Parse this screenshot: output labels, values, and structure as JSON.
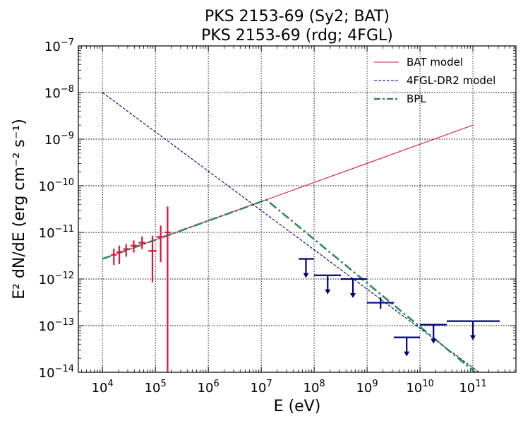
{
  "chart_data": {
    "type": "scatter",
    "title_lines": [
      "PKS 2153-69 (Sy2; BAT)",
      "PKS 2153-69 (rdg; 4FGL)"
    ],
    "xlabel": "E (eV)",
    "ylabel": "E² dN/dE (erg cm⁻² s⁻¹)",
    "x_scale": "log",
    "y_scale": "log",
    "xlim": [
      3500.0,
      650000000000.0
    ],
    "ylim": [
      1e-14,
      1e-07
    ],
    "grid": true,
    "legend_placement": "top-right",
    "x_ticks": [
      {
        "value": 10000.0,
        "base": "10",
        "exp": "4"
      },
      {
        "value": 100000.0,
        "base": "10",
        "exp": "5"
      },
      {
        "value": 1000000.0,
        "base": "10",
        "exp": "6"
      },
      {
        "value": 10000000.0,
        "base": "10",
        "exp": "7"
      },
      {
        "value": 100000000.0,
        "base": "10",
        "exp": "8"
      },
      {
        "value": 1000000000.0,
        "base": "10",
        "exp": "9"
      },
      {
        "value": 10000000000.0,
        "base": "10",
        "exp": "10"
      },
      {
        "value": 100000000000.0,
        "base": "10",
        "exp": "11"
      }
    ],
    "y_ticks": [
      {
        "value": 1e-14,
        "base": "10",
        "exp": "−14"
      },
      {
        "value": 1e-13,
        "base": "10",
        "exp": "−13"
      },
      {
        "value": 1e-12,
        "base": "10",
        "exp": "−12"
      },
      {
        "value": 1e-11,
        "base": "10",
        "exp": "−11"
      },
      {
        "value": 1e-10,
        "base": "10",
        "exp": "−10"
      },
      {
        "value": 1e-09,
        "base": "10",
        "exp": "−9"
      },
      {
        "value": 1e-08,
        "base": "10",
        "exp": "−8"
      },
      {
        "value": 1e-07,
        "base": "10",
        "exp": "−7"
      }
    ],
    "series": [
      {
        "name": "BAT model",
        "kind": "line",
        "color": "#dc143c",
        "dash": "solid",
        "points": [
          [
            10000.0,
            2.7e-12
          ],
          [
            100000000000.0,
            2e-09
          ]
        ]
      },
      {
        "name": "4FGL-DR2 model",
        "kind": "line",
        "color": "#000080",
        "dash": "dashed",
        "points": [
          [
            10000.0,
            1e-08
          ],
          [
            130000000000.0,
            1e-14
          ]
        ]
      },
      {
        "name": "BPL",
        "kind": "line",
        "color": "#2e8b57",
        "dash": "dashdot",
        "points": [
          [
            10000.0,
            2.7e-12
          ],
          [
            12500000.0,
            5e-11
          ],
          [
            110000000000.0,
            1e-14
          ]
        ]
      }
    ],
    "bat_points": [
      {
        "x": 16400.0,
        "xlo": 14500.0,
        "xhi": 18500.0,
        "y": 3.3e-12,
        "ylo": 2e-12,
        "yhi": 4.5e-12
      },
      {
        "x": 20800.0,
        "xlo": 18500.0,
        "xhi": 23500.0,
        "y": 3.8e-12,
        "ylo": 2.1e-12,
        "yhi": 5.2e-12
      },
      {
        "x": 28000.0,
        "xlo": 25000.0,
        "xhi": 31500.0,
        "y": 4.4e-12,
        "ylo": 3e-12,
        "yhi": 5.6e-12
      },
      {
        "x": 39000.0,
        "xlo": 34000.0,
        "xhi": 44500.0,
        "y": 5.2e-12,
        "ylo": 3.7e-12,
        "yhi": 6.7e-12
      },
      {
        "x": 56000.0,
        "xlo": 48000.0,
        "xhi": 65000.0,
        "y": 6e-12,
        "ylo": 4.4e-12,
        "yhi": 8.2e-12
      },
      {
        "x": 88000.0,
        "xlo": 74000.0,
        "xhi": 105000.0,
        "y": 4e-12,
        "ylo": 8.5e-13,
        "yhi": 8.5e-12
      },
      {
        "x": 126000.0,
        "xlo": 105000.0,
        "xhi": 150000.0,
        "y": 8e-12,
        "ylo": 2.3e-12,
        "yhi": 1.4e-11
      },
      {
        "x": 170000.0,
        "xlo": 150000.0,
        "xhi": 195000.0,
        "y": 1e-11,
        "ylo": 1e-14,
        "yhi": 3.6e-11
      }
    ],
    "fermi_points": [
      {
        "x": 70000000.0,
        "xlo": 51000000.0,
        "xhi": 99000000.0,
        "y": 2.7e-12,
        "type": "upper_limit"
      },
      {
        "x": 180000000.0,
        "xlo": 100000000.0,
        "xhi": 320000000.0,
        "y": 1.2e-12,
        "type": "upper_limit"
      },
      {
        "x": 540000000.0,
        "xlo": 320000000.0,
        "xhi": 1000000000.0,
        "y": 1e-12,
        "type": "upper_limit"
      },
      {
        "x": 1800000000.0,
        "xlo": 1000000000.0,
        "xhi": 3200000000.0,
        "y": 3.1e-13,
        "ylo": 2.3e-13,
        "yhi": 4e-13,
        "type": "detection"
      },
      {
        "x": 5600000000.0,
        "xlo": 3200000000.0,
        "xhi": 10000000000.0,
        "y": 5.6e-14,
        "type": "upper_limit"
      },
      {
        "x": 18000000000.0,
        "xlo": 10000000000.0,
        "xhi": 32000000000.0,
        "y": 1.05e-13,
        "type": "upper_limit"
      },
      {
        "x": 100000000000.0,
        "xlo": 32000000000.0,
        "xhi": 320000000000.0,
        "y": 1.25e-13,
        "type": "upper_limit"
      }
    ],
    "colors": {
      "bat": "#dc143c",
      "fermi": "#000080",
      "bpl": "#2e8b57"
    }
  }
}
